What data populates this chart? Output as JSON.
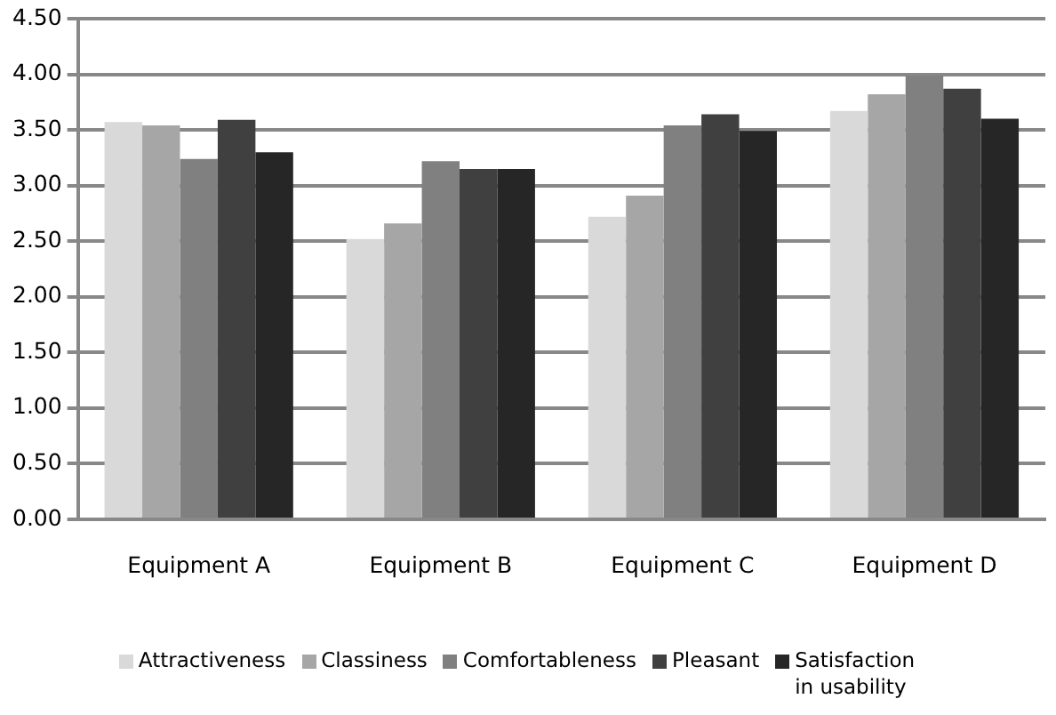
{
  "chart_data": {
    "type": "bar",
    "categories": [
      "Equipment A",
      "Equipment B",
      "Equipment C",
      "Equipment D"
    ],
    "series": [
      {
        "name": "Attractiveness",
        "color": "#d9d9d9",
        "values": [
          3.57,
          2.52,
          2.72,
          3.67
        ]
      },
      {
        "name": "Classiness",
        "color": "#a6a6a6",
        "values": [
          3.54,
          2.66,
          2.91,
          3.82
        ]
      },
      {
        "name": "Comfortableness",
        "color": "#808080",
        "values": [
          3.24,
          3.22,
          3.54,
          3.99
        ]
      },
      {
        "name": "Pleasant",
        "color": "#404040",
        "values": [
          3.59,
          3.15,
          3.64,
          3.87
        ]
      },
      {
        "name": "Satisfaction in usability",
        "color": "#262626",
        "values": [
          3.3,
          3.15,
          3.49,
          3.6
        ]
      }
    ],
    "ylim": [
      0,
      4.5
    ],
    "yticks": [
      {
        "value": 0,
        "label": "0.00"
      },
      {
        "value": 0.5,
        "label": "0.50"
      },
      {
        "value": 1,
        "label": "1.00"
      },
      {
        "value": 1.5,
        "label": "1.50"
      },
      {
        "value": 2,
        "label": "2.00"
      },
      {
        "value": 2.5,
        "label": "2.50"
      },
      {
        "value": 3,
        "label": "3.00"
      },
      {
        "value": 3.5,
        "label": "3.50"
      },
      {
        "value": 4,
        "label": "4.00"
      },
      {
        "value": 4.5,
        "label": "4.50"
      }
    ],
    "grid": "y",
    "legend": "bottom"
  }
}
